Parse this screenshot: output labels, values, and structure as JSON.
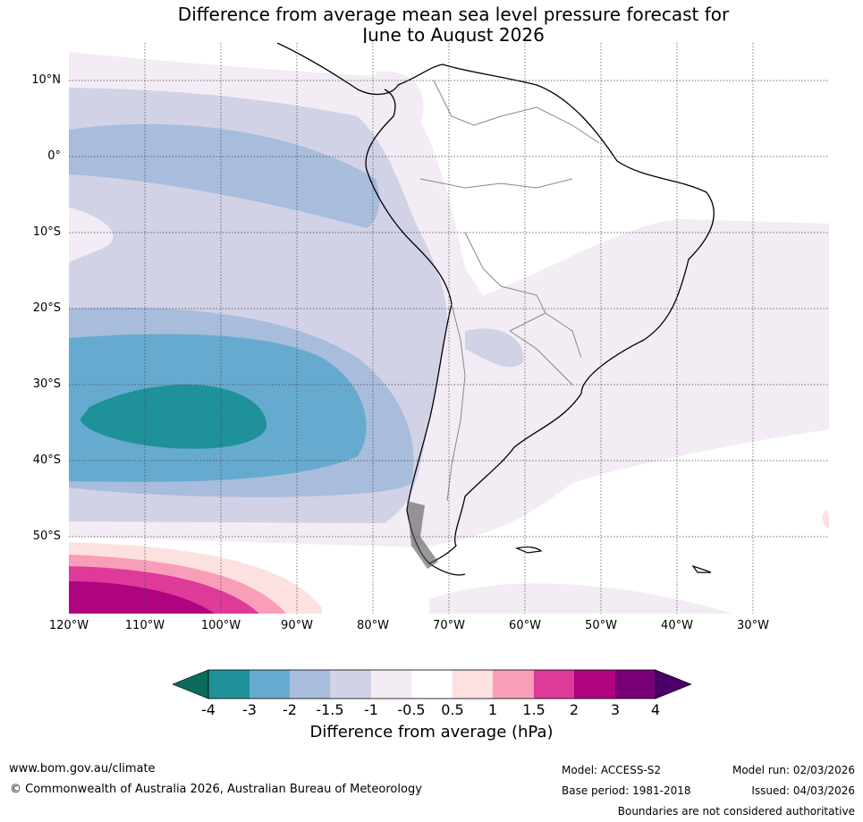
{
  "title": {
    "line1": "Difference from average mean sea level pressure forecast for",
    "line2": "June to August 2026"
  },
  "map": {
    "lat_labels": [
      "10°N",
      "0°",
      "10°S",
      "20°S",
      "30°S",
      "40°S",
      "50°S"
    ],
    "lon_labels": [
      "120°W",
      "110°W",
      "100°W",
      "90°W",
      "80°W",
      "70°W",
      "60°W",
      "50°W",
      "40°W",
      "30°W"
    ]
  },
  "colorbar": {
    "title": "Difference from average (hPa)",
    "labels": [
      "-4",
      "-3",
      "-2",
      "-1.5",
      "-1",
      "-0.5",
      "0.5",
      "1",
      "1.5",
      "2",
      "3",
      "4"
    ],
    "colors": [
      "#0d6b5d",
      "#1f9199",
      "#67aacf",
      "#a8bcdc",
      "#d1d2e6",
      "#f3ecf5",
      "#ffffff",
      "#fde0e0",
      "#f89eb8",
      "#dd3a9a",
      "#b0037f",
      "#790078",
      "#4a0068"
    ]
  },
  "footer": {
    "url": "www.bom.gov.au/climate",
    "copyright": "© Commonwealth of Australia 2026, Australian Bureau of Meteorology",
    "model": "Model: ACCESS-S2",
    "base_period": "Base period: 1981-2018",
    "model_run": "Model run: 02/03/2026",
    "issued": "Issued: 04/03/2026",
    "disclaimer": "Boundaries are not considered authoritative"
  }
}
